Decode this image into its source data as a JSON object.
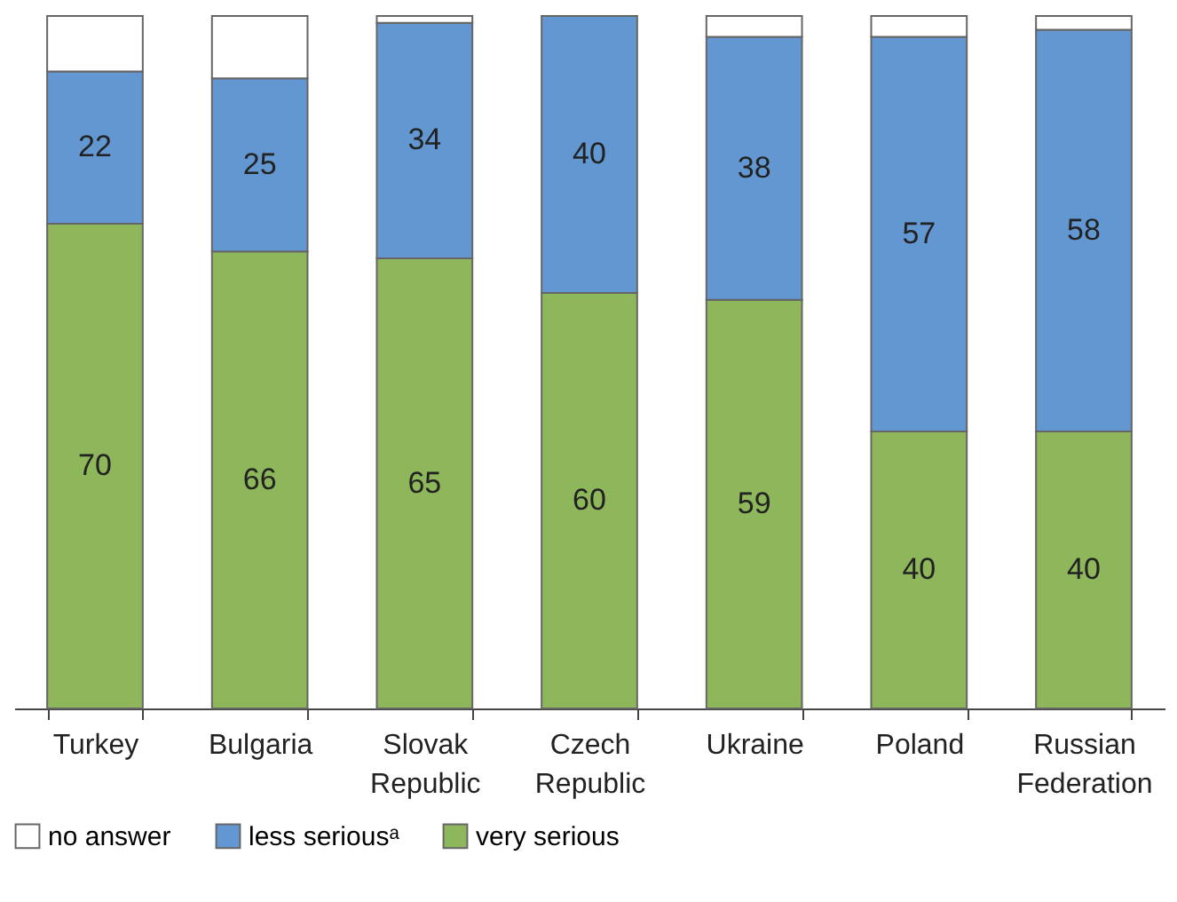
{
  "chart_data": {
    "type": "bar",
    "stacked": true,
    "categories": [
      "Turkey",
      "Bulgaria",
      "Slovak Republic",
      "Czech Republic",
      "Ukraine",
      "Poland",
      "Russian Federation"
    ],
    "series": [
      {
        "name": "very serious",
        "color": "#8db75a",
        "values": [
          70,
          66,
          65,
          60,
          59,
          40,
          40
        ],
        "value_labels": [
          "70",
          "66",
          "65",
          "60",
          "59",
          "40",
          "40"
        ]
      },
      {
        "name": "less seriousᵃ",
        "color": "#6297d2",
        "values": [
          22,
          25,
          34,
          40,
          38,
          57,
          58
        ],
        "value_labels": [
          "22",
          "25",
          "34",
          "40",
          "38",
          "57",
          "58"
        ]
      },
      {
        "name": "no answer",
        "color": "#ffffff",
        "values": [
          8,
          9,
          1,
          null,
          3,
          3,
          2
        ],
        "value_labels": [
          null,
          null,
          null,
          null,
          null,
          null,
          null
        ]
      }
    ],
    "ylim": [
      0,
      100
    ],
    "tick_labels": "x",
    "legend": "bottom",
    "grid": false
  }
}
